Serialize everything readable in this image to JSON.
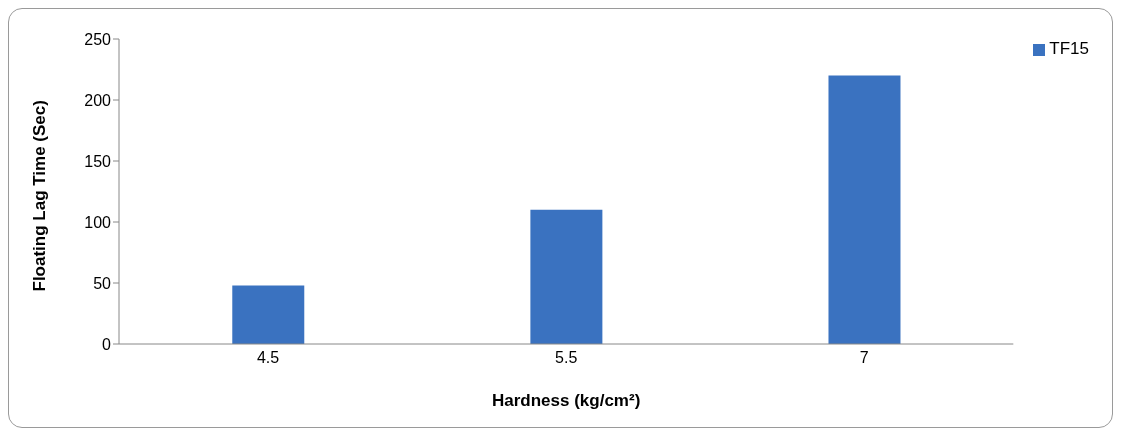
{
  "chart_data": {
    "type": "bar",
    "xlabel": "Hardness (kg/cm²)",
    "ylabel": "Floating Lag Time (Sec)",
    "categories": [
      "4.5",
      "5.5",
      "7"
    ],
    "series": [
      {
        "name": "TF15",
        "color": "#3a72c0",
        "values": [
          48,
          110,
          220
        ]
      }
    ],
    "ylim": [
      0,
      250
    ],
    "yticks": [
      0,
      50,
      100,
      150,
      200,
      250
    ],
    "grid": false,
    "legend": "top right"
  }
}
